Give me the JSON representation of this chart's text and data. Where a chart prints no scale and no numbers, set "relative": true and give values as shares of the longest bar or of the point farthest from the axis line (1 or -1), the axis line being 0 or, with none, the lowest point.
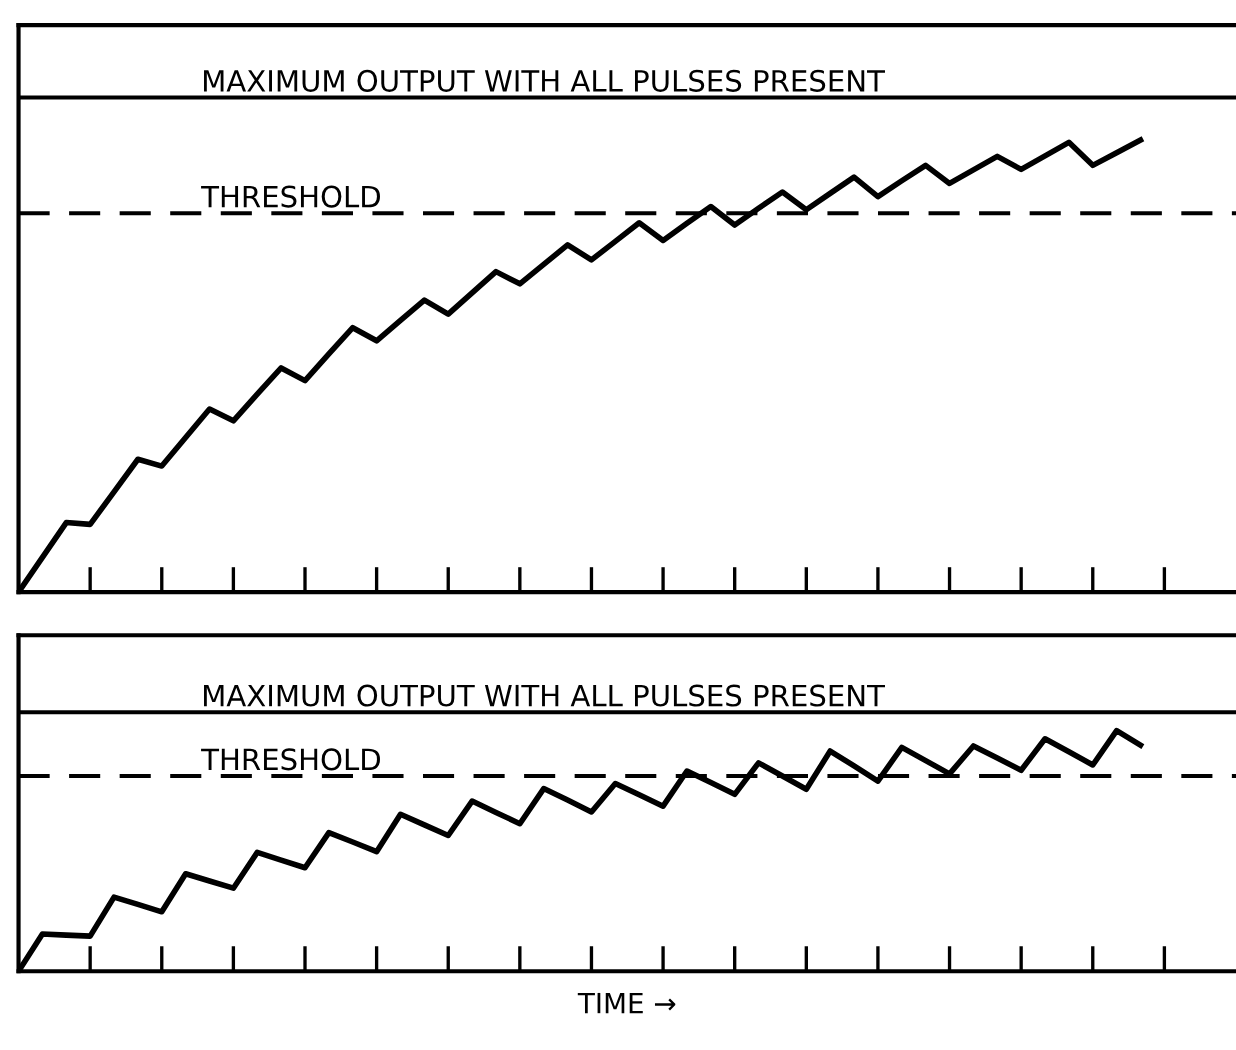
{
  "chart_data": [
    {
      "type": "line",
      "relative": true,
      "categories": [
        null,
        null,
        null,
        null,
        null,
        null,
        null,
        null,
        null,
        null,
        null,
        null,
        null,
        null,
        null,
        null,
        null,
        null,
        null,
        null,
        null,
        null,
        null,
        null,
        null,
        null,
        null,
        null,
        null,
        null,
        null,
        null,
        null,
        null,
        null,
        null,
        null,
        null,
        null,
        null,
        null,
        null,
        null,
        null,
        null,
        null,
        null,
        null,
        null,
        null,
        null,
        null
      ],
      "series": [
        {
          "color": "#000000",
          "values": [
            0,
            0.077,
            0.154,
            0.15,
            0.222,
            0.294,
            0.279,
            0.342,
            0.405,
            0.379,
            0.438,
            0.496,
            0.468,
            0.527,
            0.585,
            0.556,
            0.601,
            0.646,
            0.615,
            0.662,
            0.709,
            0.682,
            0.725,
            0.768,
            0.735,
            0.776,
            0.817,
            0.778,
            0.816,
            0.853,
            0.812,
            0.849,
            0.885,
            0.846,
            0.882,
            0.918,
            0.875,
            0.91,
            0.944,
            0.904,
            0.934,
            0.964,
            0.935,
            0.965,
            0.995,
            0.944,
            0.972,
            1.0,
            null,
            null,
            null,
            null
          ]
        }
      ],
      "ref_lines": [
        {
          "axis": "y",
          "value": 1.094,
          "label": "MAXIMUM OUTPUT WITH ALL PULSES PRESENT",
          "color": "#000000",
          "line_style": "solid"
        },
        {
          "axis": "y",
          "value": 0.838,
          "label": "THRESHOLD",
          "color": "#000000",
          "line_style": "dashed"
        }
      ]
    },
    {
      "type": "line",
      "relative": true,
      "xlabel": "TIME →",
      "categories": [
        null,
        null,
        null,
        null,
        null,
        null,
        null,
        null,
        null,
        null,
        null,
        null,
        null,
        null,
        null,
        null,
        null,
        null,
        null,
        null,
        null,
        null,
        null,
        null,
        null,
        null,
        null,
        null,
        null,
        null,
        null,
        null,
        null,
        null,
        null,
        null,
        null,
        null,
        null,
        null,
        null,
        null,
        null,
        null,
        null,
        null,
        null,
        null,
        null,
        null,
        null,
        null
      ],
      "series": [
        {
          "color": "#000000",
          "values": [
            0,
            0.155,
            0.15,
            0.146,
            0.308,
            0.278,
            0.247,
            0.405,
            0.375,
            0.345,
            0.494,
            0.462,
            0.43,
            0.576,
            0.537,
            0.497,
            0.652,
            0.608,
            0.564,
            0.707,
            0.66,
            0.613,
            0.759,
            0.711,
            0.662,
            0.78,
            0.733,
            0.686,
            0.832,
            0.784,
            0.735,
            0.866,
            0.811,
            0.756,
            0.915,
            0.853,
            0.79,
            0.93,
            0.875,
            0.82,
            0.936,
            0.886,
            0.835,
            0.966,
            0.912,
            0.857,
            1.0,
            0.939,
            null,
            null,
            null,
            null
          ]
        }
      ],
      "ref_lines": [
        {
          "axis": "y",
          "value": 1.076,
          "label": "MAXIMUM OUTPUT WITH ALL PULSES PRESENT",
          "color": "#000000",
          "line_style": "solid"
        },
        {
          "axis": "y",
          "value": 0.811,
          "label": "THRESHOLD",
          "color": "#000000",
          "line_style": "dashed"
        }
      ]
    }
  ]
}
